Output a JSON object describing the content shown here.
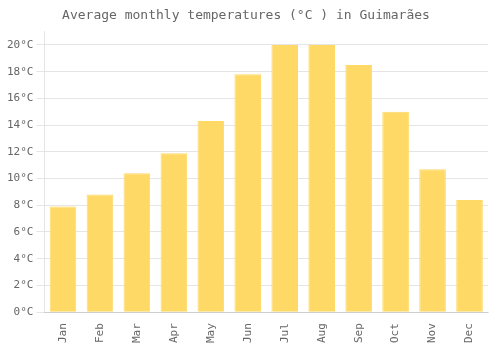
{
  "chart_data": {
    "type": "bar",
    "title": "Average monthly temperatures (°C ) in Guimarães",
    "categories": [
      "Jan",
      "Feb",
      "Mar",
      "Apr",
      "May",
      "Jun",
      "Jul",
      "Aug",
      "Sep",
      "Oct",
      "Nov",
      "Dec"
    ],
    "values": [
      7.9,
      8.8,
      10.4,
      11.9,
      14.3,
      17.8,
      20.0,
      20.0,
      18.5,
      15.0,
      10.7,
      8.4
    ],
    "color": "#FFD966",
    "ylim": [
      0,
      21
    ],
    "yticks": [
      {
        "value": 0,
        "label": "0°C"
      },
      {
        "value": 2,
        "label": "2°C"
      },
      {
        "value": 4,
        "label": "4°C"
      },
      {
        "value": 6,
        "label": "6°C"
      },
      {
        "value": 8,
        "label": "8°C"
      },
      {
        "value": 10,
        "label": "10°C"
      },
      {
        "value": 12,
        "label": "12°C"
      },
      {
        "value": 14,
        "label": "14°C"
      },
      {
        "value": 16,
        "label": "16°C"
      },
      {
        "value": 18,
        "label": "18°C"
      },
      {
        "value": 20,
        "label": "20°C"
      }
    ],
    "grid": true
  }
}
